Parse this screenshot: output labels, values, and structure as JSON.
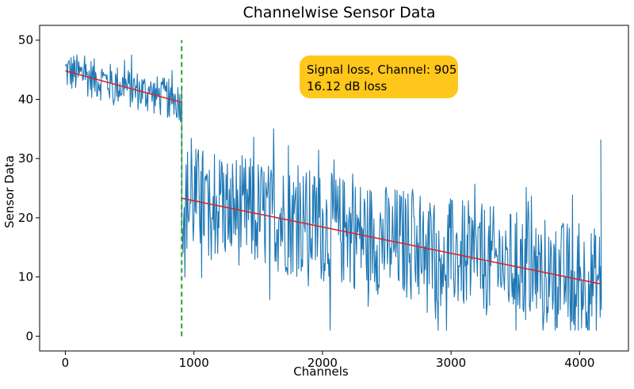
{
  "chart_data": {
    "type": "line",
    "title": "Channelwise Sensor Data",
    "xlabel": "Channels",
    "ylabel": "Sensor Data",
    "xlim": [
      -200,
      4380
    ],
    "ylim": [
      -2.5,
      52.5
    ],
    "xticks": [
      0,
      1000,
      2000,
      3000,
      4000
    ],
    "yticks": [
      0,
      10,
      20,
      30,
      40,
      50
    ],
    "grid": false,
    "series": [
      {
        "kind": "noisy-signal",
        "color": "#1f77b4",
        "x_range": [
          0,
          4170
        ],
        "step": 5,
        "segments": [
          {
            "x_start": 0,
            "x_end": 905,
            "mean_start": 44.8,
            "mean_end": 39.5,
            "noise_amplitude": 3.4,
            "min": 33.5,
            "max": 48
          },
          {
            "x_start": 905,
            "x_end": 4170,
            "mean_start": 23.3,
            "mean_end": 8.8,
            "noise_amplitude": 9.5,
            "min": 1.0,
            "max": 36.5
          }
        ],
        "end_spike": {
          "x": 4165,
          "y": 33.2
        }
      },
      {
        "kind": "trend",
        "color": "#d62728",
        "segments": [
          {
            "x": [
              0,
              905
            ],
            "y": [
              44.8,
              39.5
            ]
          },
          {
            "x": [
              905,
              4170
            ],
            "y": [
              23.3,
              8.8
            ]
          }
        ]
      }
    ],
    "vline": {
      "x": 905,
      "y_range": [
        0,
        50
      ],
      "color": "#2ca02c",
      "style": "dashed"
    },
    "annotation": {
      "lines": [
        "Signal loss, Channel: 905",
        "16.12 dB loss"
      ],
      "anchor": {
        "x": 1850,
        "y": 44.5
      },
      "background": "#ffc71b"
    }
  }
}
